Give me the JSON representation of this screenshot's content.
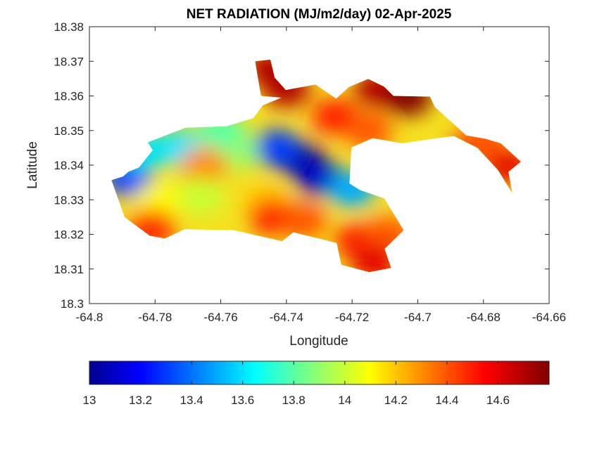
{
  "chart_data": {
    "type": "heatmap",
    "title": "NET RADIATION (MJ/m2/day) 02-Apr-2025",
    "xlabel": "Longitude",
    "ylabel": "Latitude",
    "xlim": [
      -64.8,
      -64.66
    ],
    "ylim": [
      18.3,
      18.38
    ],
    "xticks": [
      -64.8,
      -64.78,
      -64.76,
      -64.74,
      -64.72,
      -64.7,
      -64.68,
      -64.66
    ],
    "yticks": [
      18.3,
      18.31,
      18.32,
      18.33,
      18.34,
      18.35,
      18.36,
      18.37,
      18.38
    ],
    "xtick_labels": [
      "-64.8",
      "-64.78",
      "-64.76",
      "-64.74",
      "-64.72",
      "-64.7",
      "-64.68",
      "-64.66"
    ],
    "ytick_labels": [
      "18.3",
      "18.31",
      "18.32",
      "18.33",
      "18.34",
      "18.35",
      "18.36",
      "18.37",
      "18.38"
    ],
    "grid": false,
    "colormap": "jet",
    "colorbar": {
      "orientation": "horizontal",
      "placement": "bottom",
      "range": [
        13,
        14.8
      ],
      "ticks": [
        13,
        13.2,
        13.4,
        13.6,
        13.8,
        14,
        14.2,
        14.4,
        14.6
      ],
      "tick_labels": [
        "13",
        "13.2",
        "13.4",
        "13.6",
        "13.8",
        "14",
        "14.2",
        "14.4",
        "14.6"
      ]
    },
    "region_outline": [
      [
        -64.7933,
        18.3357
      ],
      [
        -64.7898,
        18.3367
      ],
      [
        -64.7881,
        18.3381
      ],
      [
        -64.7849,
        18.3393
      ],
      [
        -64.7807,
        18.3443
      ],
      [
        -64.7822,
        18.3466
      ],
      [
        -64.7707,
        18.3508
      ],
      [
        -64.7582,
        18.3512
      ],
      [
        -64.7501,
        18.3536
      ],
      [
        -64.7472,
        18.3573
      ],
      [
        -64.7415,
        18.3595
      ],
      [
        -64.7477,
        18.36
      ],
      [
        -64.7483,
        18.3631
      ],
      [
        -64.7495,
        18.37
      ],
      [
        -64.7449,
        18.3705
      ],
      [
        -64.7436,
        18.3653
      ],
      [
        -64.7402,
        18.3617
      ],
      [
        -64.7311,
        18.3633
      ],
      [
        -64.7249,
        18.3592
      ],
      [
        -64.7209,
        18.3626
      ],
      [
        -64.7151,
        18.3649
      ],
      [
        -64.7103,
        18.3627
      ],
      [
        -64.7074,
        18.36
      ],
      [
        -64.6963,
        18.3598
      ],
      [
        -64.6948,
        18.3568
      ],
      [
        -64.6894,
        18.3522
      ],
      [
        -64.6853,
        18.3486
      ],
      [
        -64.6793,
        18.3476
      ],
      [
        -64.6747,
        18.3463
      ],
      [
        -64.6686,
        18.341
      ],
      [
        -64.6724,
        18.3381
      ],
      [
        -64.6712,
        18.3318
      ],
      [
        -64.6755,
        18.3385
      ],
      [
        -64.6818,
        18.345
      ],
      [
        -64.689,
        18.3484
      ],
      [
        -64.6941,
        18.3478
      ],
      [
        -64.7047,
        18.3463
      ],
      [
        -64.7138,
        18.3478
      ],
      [
        -64.7202,
        18.3451
      ],
      [
        -64.7208,
        18.3347
      ],
      [
        -64.7176,
        18.3328
      ],
      [
        -64.7102,
        18.3304
      ],
      [
        -64.7043,
        18.3212
      ],
      [
        -64.7101,
        18.3158
      ],
      [
        -64.7081,
        18.3103
      ],
      [
        -64.7148,
        18.3091
      ],
      [
        -64.7233,
        18.3112
      ],
      [
        -64.7247,
        18.3175
      ],
      [
        -64.7379,
        18.3206
      ],
      [
        -64.7413,
        18.318
      ],
      [
        -64.7561,
        18.3212
      ],
      [
        -64.7629,
        18.3213
      ],
      [
        -64.7709,
        18.3215
      ],
      [
        -64.777,
        18.3188
      ],
      [
        -64.7816,
        18.3196
      ],
      [
        -64.7893,
        18.325
      ],
      [
        -64.7933,
        18.3357
      ]
    ],
    "hotspots": [
      {
        "lon": -64.736,
        "lat": 18.3415,
        "value": 13.0
      },
      {
        "lon": -64.73,
        "lat": 18.3365,
        "value": 13.1
      },
      {
        "lon": -64.743,
        "lat": 18.345,
        "value": 13.3
      },
      {
        "lon": -64.72,
        "lat": 18.333,
        "value": 13.5
      },
      {
        "lon": -64.788,
        "lat": 18.336,
        "value": 13.3
      },
      {
        "lon": -64.773,
        "lat": 18.345,
        "value": 13.6
      },
      {
        "lon": -64.756,
        "lat": 18.344,
        "value": 13.9
      },
      {
        "lon": -64.765,
        "lat": 18.34,
        "value": 14.3
      },
      {
        "lon": -64.779,
        "lat": 18.3295,
        "value": 14.1
      },
      {
        "lon": -64.781,
        "lat": 18.322,
        "value": 14.5
      },
      {
        "lon": -64.766,
        "lat": 18.331,
        "value": 14.0
      },
      {
        "lon": -64.746,
        "lat": 18.329,
        "value": 14.2
      },
      {
        "lon": -64.744,
        "lat": 18.325,
        "value": 14.5
      },
      {
        "lon": -64.735,
        "lat": 18.324,
        "value": 14.4
      },
      {
        "lon": -64.718,
        "lat": 18.318,
        "value": 14.5
      },
      {
        "lon": -64.709,
        "lat": 18.32,
        "value": 14.4
      },
      {
        "lon": -64.713,
        "lat": 18.312,
        "value": 14.6
      },
      {
        "lon": -64.725,
        "lat": 18.354,
        "value": 14.5
      },
      {
        "lon": -64.715,
        "lat": 18.35,
        "value": 14.4
      },
      {
        "lon": -64.74,
        "lat": 18.362,
        "value": 14.7
      },
      {
        "lon": -64.745,
        "lat": 18.368,
        "value": 14.7
      },
      {
        "lon": -64.712,
        "lat": 18.362,
        "value": 14.7
      },
      {
        "lon": -64.703,
        "lat": 18.3595,
        "value": 14.8
      },
      {
        "lon": -64.682,
        "lat": 18.346,
        "value": 14.6
      },
      {
        "lon": -64.673,
        "lat": 18.34,
        "value": 14.6
      },
      {
        "lon": -64.68,
        "lat": 18.347,
        "value": 14.4
      },
      {
        "lon": -64.76,
        "lat": 18.35,
        "value": 13.8
      },
      {
        "lon": -64.784,
        "lat": 18.344,
        "value": 13.6
      }
    ],
    "colorbar_stops": [
      [
        0.0,
        "#00008f"
      ],
      [
        0.11,
        "#0000ff"
      ],
      [
        0.36,
        "#00ffff"
      ],
      [
        0.48,
        "#7fff7f"
      ],
      [
        0.61,
        "#ffff00"
      ],
      [
        0.86,
        "#ff0000"
      ],
      [
        1.0,
        "#800000"
      ]
    ]
  }
}
